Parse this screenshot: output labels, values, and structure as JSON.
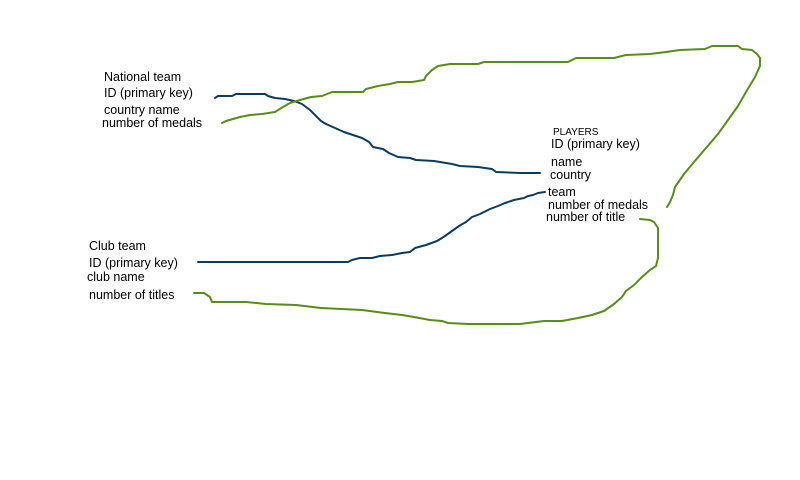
{
  "national_team": {
    "title": "National team",
    "fields": [
      "ID (primary key)",
      "country name",
      "number of medals"
    ]
  },
  "players": {
    "title": "PLAYERS",
    "fields": [
      "ID (primary key)",
      "name",
      "country",
      "team",
      "number of medals",
      "number of title"
    ]
  },
  "club_team": {
    "title": "Club team",
    "fields": [
      "ID (primary key)",
      "club name",
      "number of titles"
    ]
  },
  "colors": {
    "blue_link": "#0d3b5e",
    "green_link": "#5a8c1a",
    "text": "#000000",
    "background": "#ffffff"
  }
}
